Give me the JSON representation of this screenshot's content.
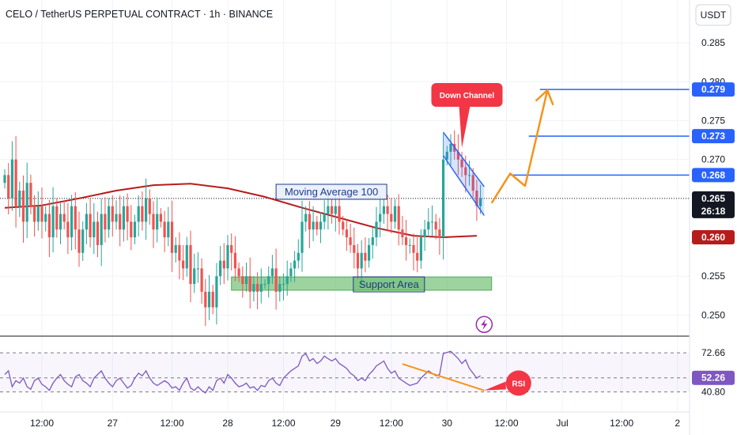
{
  "header": {
    "title": "CELO / TetherUS PERPETUAL CONTRACT · 1h · BINANCE",
    "currency_badge": "USDT"
  },
  "colors": {
    "up": "#26a69a",
    "down": "#ef5350",
    "ma": "#b71c1c",
    "channel": "#2962ff",
    "projection": "#f7931a",
    "support": "#4caf50",
    "rsi_line": "#7e57c2",
    "bubble": "#f23645"
  },
  "chart_data": [
    {
      "type": "candlestick",
      "timeframe": "1h",
      "ylim": [
        0.2475,
        0.2905
      ],
      "price_ticks": [
        "0.285",
        "0.280",
        "0.275",
        "0.270",
        "0.265",
        "0.255",
        "0.250"
      ],
      "price_tick_values": [
        0.285,
        0.28,
        0.275,
        0.27,
        0.265,
        0.255,
        0.25
      ],
      "time_ticks": [
        "12:00",
        "27",
        "12:00",
        "28",
        "12:00",
        "29",
        "12:00",
        "30",
        "12:00",
        "Jul",
        "12:00",
        "2"
      ],
      "current_price": {
        "label": "0.265",
        "value": 0.265,
        "countdown": "26:18"
      },
      "price_tags": [
        {
          "label": "0.279",
          "value": 0.279,
          "kind": "level"
        },
        {
          "label": "0.273",
          "value": 0.273,
          "kind": "level"
        },
        {
          "label": "0.268",
          "value": 0.268,
          "kind": "level"
        },
        {
          "label": "0.260",
          "value": 0.26,
          "kind": "ma"
        }
      ],
      "closes": [
        0.268,
        0.265,
        0.27,
        0.264,
        0.266,
        0.262,
        0.267,
        0.264,
        0.262,
        0.264,
        0.262,
        0.263,
        0.26,
        0.264,
        0.261,
        0.263,
        0.262,
        0.26,
        0.264,
        0.261,
        0.258,
        0.261,
        0.263,
        0.26,
        0.262,
        0.259,
        0.263,
        0.261,
        0.264,
        0.262,
        0.263,
        0.261,
        0.264,
        0.262,
        0.26,
        0.262,
        0.264,
        0.262,
        0.265,
        0.263,
        0.261,
        0.263,
        0.262,
        0.26,
        0.262,
        0.258,
        0.259,
        0.257,
        0.256,
        0.259,
        0.254,
        0.256,
        0.256,
        0.253,
        0.251,
        0.253,
        0.251,
        0.255,
        0.257,
        0.256,
        0.259,
        0.258,
        0.256,
        0.255,
        0.254,
        0.255,
        0.253,
        0.254,
        0.253,
        0.254,
        0.254,
        0.255,
        0.256,
        0.253,
        0.254,
        0.254,
        0.255,
        0.256,
        0.257,
        0.258,
        0.262,
        0.263,
        0.261,
        0.262,
        0.261,
        0.262,
        0.263,
        0.264,
        0.263,
        0.264,
        0.262,
        0.261,
        0.26,
        0.259,
        0.258,
        0.256,
        0.258,
        0.257,
        0.259,
        0.26,
        0.262,
        0.263,
        0.264,
        0.263,
        0.262,
        0.264,
        0.261,
        0.26,
        0.259,
        0.259,
        0.258,
        0.257,
        0.26,
        0.261,
        0.262,
        0.262,
        0.261,
        0.26,
        0.27,
        0.271,
        0.272,
        0.271,
        0.27,
        0.269,
        0.268,
        0.268,
        0.266,
        0.264,
        0.265
      ],
      "moving_average": {
        "label": "Moving Average 100",
        "points": [
          [
            0,
            0.2638
          ],
          [
            10,
            0.2641
          ],
          [
            20,
            0.265
          ],
          [
            30,
            0.266
          ],
          [
            40,
            0.2667
          ],
          [
            50,
            0.2669
          ],
          [
            60,
            0.2663
          ],
          [
            70,
            0.2652
          ],
          [
            80,
            0.2638
          ],
          [
            90,
            0.2625
          ],
          [
            100,
            0.2612
          ],
          [
            110,
            0.2602
          ],
          [
            118,
            0.26
          ],
          [
            127,
            0.2602
          ]
        ]
      },
      "down_channel": {
        "label": "Down Channel",
        "upper": [
          [
            118,
            0.2735
          ],
          [
            129,
            0.2665
          ]
        ],
        "lower": [
          [
            118,
            0.2705
          ],
          [
            129,
            0.2628
          ]
        ]
      },
      "support_area": {
        "label": "Support Area",
        "from": 61,
        "to": 131,
        "low": 0.2532,
        "high": 0.2549
      },
      "levels": [
        {
          "value": 0.279,
          "from": 144,
          "to": 192
        },
        {
          "value": 0.273,
          "from": 141,
          "to": 192
        },
        {
          "value": 0.268,
          "from": 136,
          "to": 192
        }
      ],
      "projection_path": [
        [
          131,
          0.2644
        ],
        [
          136,
          0.2682
        ],
        [
          140,
          0.2666
        ],
        [
          146,
          0.2789
        ]
      ]
    },
    {
      "type": "line",
      "indicator": "RSI",
      "label": "RSI",
      "ylim": [
        25,
        85
      ],
      "ticks": [
        "72.66",
        "52.26",
        "40.80"
      ],
      "tick_values": [
        72.66,
        52.26,
        40.8
      ],
      "values": [
        55,
        58,
        45,
        50,
        48,
        52,
        45,
        43,
        50,
        52,
        47,
        45,
        42,
        48,
        52,
        55,
        50,
        47,
        45,
        53,
        55,
        50,
        48,
        45,
        52,
        55,
        58,
        52,
        48,
        45,
        50,
        52,
        48,
        44,
        46,
        52,
        56,
        54,
        58,
        52,
        48,
        46,
        48,
        50,
        48,
        44,
        45,
        42,
        48,
        52,
        44,
        42,
        45,
        42,
        40,
        45,
        42,
        50,
        52,
        48,
        55,
        52,
        48,
        45,
        46,
        48,
        44,
        45,
        42,
        46,
        45,
        50,
        52,
        48,
        46,
        52,
        55,
        58,
        60,
        62,
        70,
        72,
        66,
        68,
        64,
        66,
        70,
        68,
        66,
        68,
        64,
        62,
        60,
        56,
        54,
        50,
        52,
        50,
        55,
        58,
        62,
        64,
        66,
        60,
        56,
        58,
        52,
        50,
        48,
        46,
        47,
        48,
        52,
        55,
        58,
        56,
        54,
        55,
        72,
        73,
        74,
        71,
        68,
        64,
        67,
        60,
        56,
        52,
        54
      ],
      "divergence_line": [
        [
          107,
          63.6
        ],
        [
          129,
          42.0
        ]
      ]
    }
  ]
}
